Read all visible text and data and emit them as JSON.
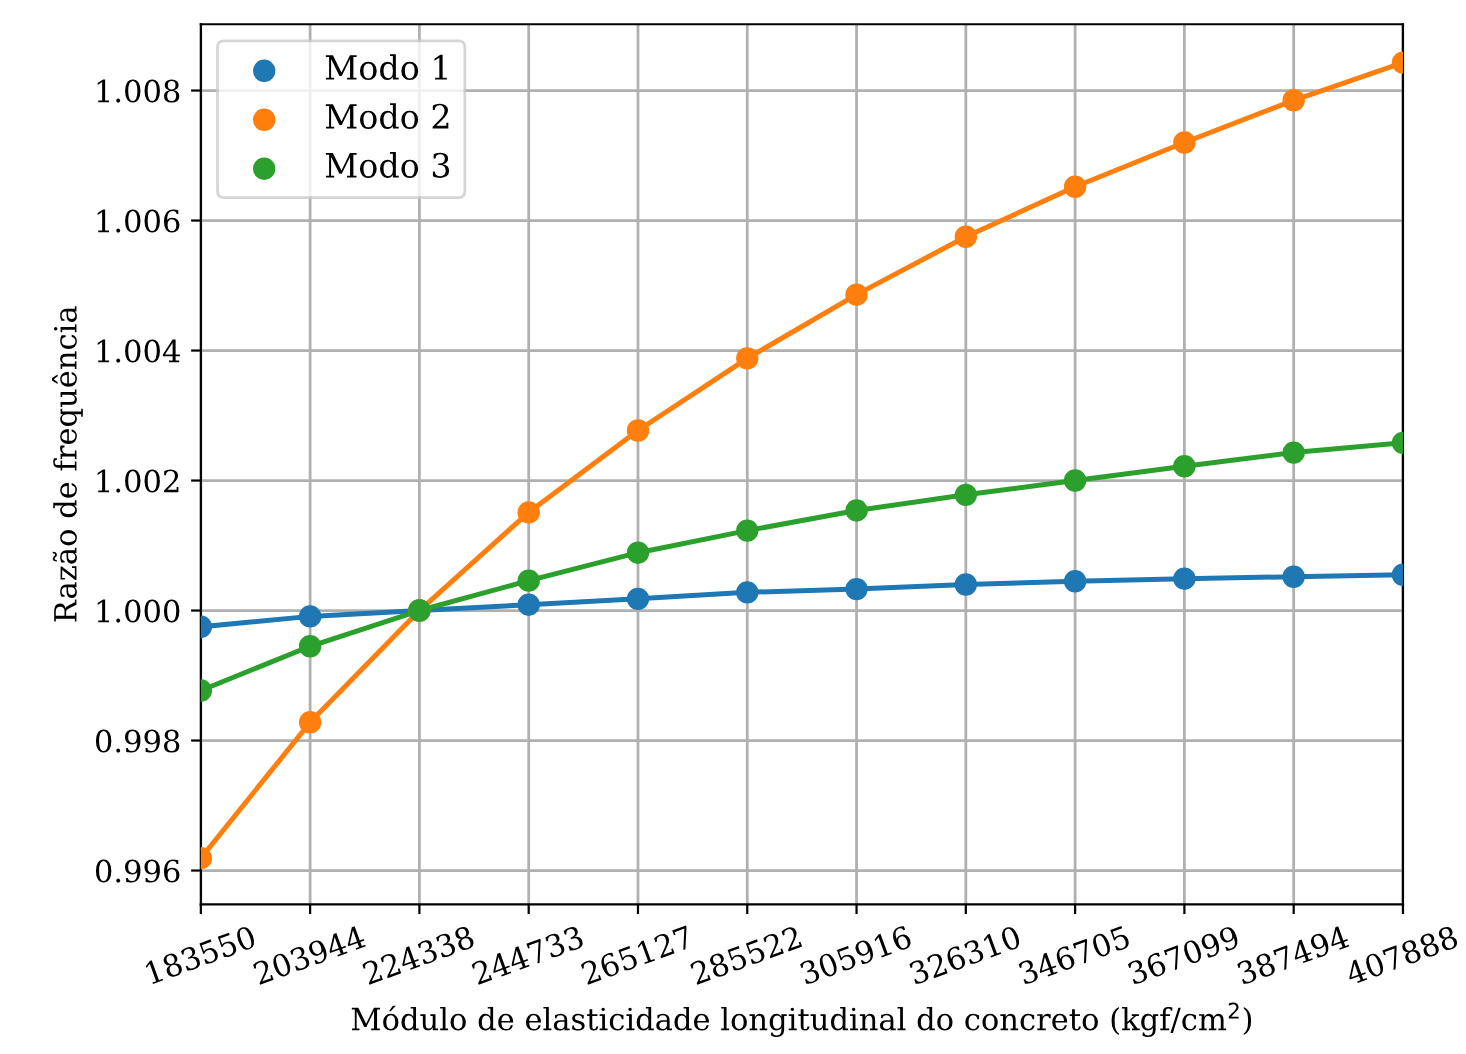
{
  "chart_data": {
    "type": "line",
    "xlabel": "Módulo de elasticidade longitudinal do concreto (kgf/cm$^{2}$)",
    "ylabel": "Razão de frequência",
    "x": [
      183550,
      203944,
      224338,
      244733,
      265127,
      285522,
      305916,
      326310,
      346705,
      367099,
      387494,
      407888
    ],
    "series": [
      {
        "name": "Modo 1",
        "color": "#1f77b4",
        "values": [
          0.99975,
          0.99991,
          1.0,
          1.00009,
          1.00018,
          1.00028,
          1.00033,
          1.0004,
          1.00045,
          1.00049,
          1.00052,
          1.00055
        ]
      },
      {
        "name": "Modo 2",
        "color": "#ff7f0e",
        "values": [
          0.99619,
          0.99828,
          1.0,
          1.00151,
          1.00277,
          1.00388,
          1.00486,
          1.00575,
          1.00652,
          1.0072,
          1.00785,
          1.00843
        ]
      },
      {
        "name": "Modo 3",
        "color": "#2ca02c",
        "values": [
          0.99877,
          0.99945,
          1.0,
          1.00046,
          1.00089,
          1.00123,
          1.00154,
          1.00178,
          1.002,
          1.00222,
          1.00243,
          1.00258
        ]
      }
    ],
    "xlim": [
      183550,
      407888
    ],
    "xticks": [
      183550,
      203944,
      224338,
      244733,
      265127,
      285522,
      305916,
      326310,
      346705,
      367099,
      387494,
      407888
    ],
    "ylim": [
      0.99548,
      1.00902
    ],
    "yticks": [
      {
        "value": 0.996,
        "label": "0.996"
      },
      {
        "value": 0.998,
        "label": "0.998"
      },
      {
        "value": 1.0,
        "label": "1.000"
      },
      {
        "value": 1.002,
        "label": "1.002"
      },
      {
        "value": 1.004,
        "label": "1.004"
      },
      {
        "value": 1.006,
        "label": "1.006"
      },
      {
        "value": 1.008,
        "label": "1.008"
      }
    ],
    "grid": true,
    "legend": "top left",
    "marker": "circle",
    "line_style": "solid"
  }
}
